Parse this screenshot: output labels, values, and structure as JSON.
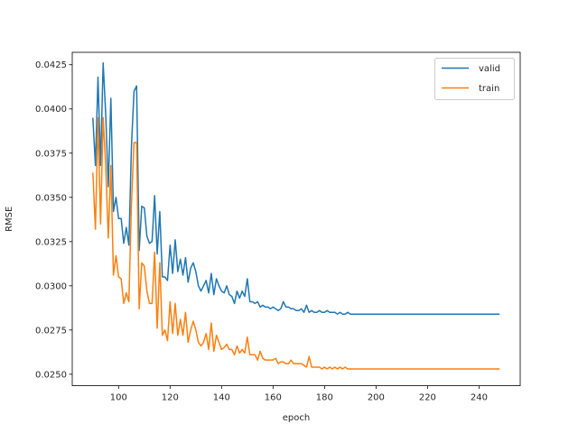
{
  "chart_data": {
    "type": "line",
    "title": "",
    "xlabel": "epoch",
    "ylabel": "RMSE",
    "xlim": [
      82,
      256
    ],
    "ylim": [
      0.02435,
      0.0432
    ],
    "xticks": [
      100,
      120,
      140,
      160,
      180,
      200,
      220,
      240
    ],
    "xtick_labels": [
      "100",
      "120",
      "140",
      "160",
      "180",
      "200",
      "220",
      "240"
    ],
    "yticks": [
      0.025,
      0.0275,
      0.03,
      0.0325,
      0.035,
      0.0375,
      0.04,
      0.0425
    ],
    "ytick_labels": [
      "0.0250",
      "0.0275",
      "0.0300",
      "0.0325",
      "0.0350",
      "0.0375",
      "0.0400",
      "0.0425"
    ],
    "grid": false,
    "legend_position": "upper right",
    "x_start": 90,
    "x_step": 1,
    "series": [
      {
        "name": "valid",
        "color": "#1f77b4",
        "values": [
          0.0395,
          0.0368,
          0.0418,
          0.0368,
          0.0426,
          0.0397,
          0.0356,
          0.0406,
          0.0342,
          0.035,
          0.0338,
          0.0338,
          0.0324,
          0.0333,
          0.0323,
          0.0379,
          0.041,
          0.0413,
          0.032,
          0.0345,
          0.0344,
          0.0328,
          0.0324,
          0.0325,
          0.0351,
          0.0318,
          0.0342,
          0.0305,
          0.0305,
          0.0303,
          0.0323,
          0.0307,
          0.0326,
          0.0308,
          0.0315,
          0.0306,
          0.0316,
          0.0302,
          0.031,
          0.0313,
          0.0308,
          0.03,
          0.0297,
          0.03,
          0.0303,
          0.0296,
          0.0307,
          0.0295,
          0.0304,
          0.03,
          0.0297,
          0.0296,
          0.03,
          0.0295,
          0.0294,
          0.029,
          0.0297,
          0.0293,
          0.0297,
          0.0294,
          0.0304,
          0.0291,
          0.0291,
          0.029,
          0.0291,
          0.0288,
          0.0289,
          0.0288,
          0.0288,
          0.0287,
          0.0288,
          0.0287,
          0.0286,
          0.0287,
          0.0291,
          0.0288,
          0.0288,
          0.0287,
          0.0287,
          0.0286,
          0.0286,
          0.0287,
          0.0285,
          0.0289,
          0.0285,
          0.0286,
          0.0285,
          0.0285,
          0.0286,
          0.0285,
          0.0285,
          0.0286,
          0.0285,
          0.0285,
          0.0285,
          0.0284,
          0.0285,
          0.0284,
          0.0284,
          0.0285,
          0.0284,
          0.0284,
          0.0284,
          0.0284,
          0.0284,
          0.0284,
          0.0284,
          0.0284,
          0.0284,
          0.0284,
          0.0284,
          0.0284,
          0.0284,
          0.0284,
          0.0284,
          0.0284,
          0.0284,
          0.0284,
          0.0284,
          0.0284,
          0.0284,
          0.0284,
          0.0284,
          0.0284,
          0.0284,
          0.0284,
          0.0284,
          0.0284,
          0.0284,
          0.0284,
          0.0284,
          0.0284,
          0.0284,
          0.0284,
          0.0284,
          0.0284,
          0.0284,
          0.0284,
          0.0284,
          0.0284,
          0.0284,
          0.0284,
          0.0284,
          0.0284,
          0.0284,
          0.0284,
          0.0284,
          0.0284,
          0.0284,
          0.0284,
          0.0284,
          0.0284,
          0.0284,
          0.0284,
          0.0284,
          0.0284,
          0.0284,
          0.0284,
          0.0284
        ]
      },
      {
        "name": "train",
        "color": "#ff7f0e",
        "values": [
          0.0364,
          0.0332,
          0.0395,
          0.0335,
          0.0395,
          0.0368,
          0.0327,
          0.0368,
          0.0306,
          0.0317,
          0.0305,
          0.0304,
          0.029,
          0.0296,
          0.0291,
          0.0347,
          0.0381,
          0.0381,
          0.0287,
          0.0313,
          0.0311,
          0.0297,
          0.029,
          0.029,
          0.0319,
          0.0276,
          0.0313,
          0.0272,
          0.0275,
          0.0269,
          0.0291,
          0.0273,
          0.029,
          0.0272,
          0.0281,
          0.0272,
          0.0285,
          0.0268,
          0.0275,
          0.028,
          0.0275,
          0.0268,
          0.0266,
          0.0268,
          0.0273,
          0.0264,
          0.0279,
          0.0263,
          0.0272,
          0.0268,
          0.0264,
          0.0265,
          0.0267,
          0.0264,
          0.0264,
          0.0261,
          0.0266,
          0.0262,
          0.0264,
          0.0262,
          0.0271,
          0.0261,
          0.0261,
          0.0261,
          0.0258,
          0.0263,
          0.0259,
          0.0258,
          0.0258,
          0.0258,
          0.0258,
          0.0259,
          0.0256,
          0.0257,
          0.0257,
          0.0256,
          0.0256,
          0.0258,
          0.0256,
          0.0256,
          0.0256,
          0.0256,
          0.0255,
          0.0254,
          0.026,
          0.0254,
          0.0254,
          0.0254,
          0.0254,
          0.0253,
          0.0254,
          0.0253,
          0.0254,
          0.0253,
          0.0254,
          0.0253,
          0.0254,
          0.0253,
          0.0254,
          0.0253,
          0.0253,
          0.0253,
          0.0253,
          0.0253,
          0.0253,
          0.0253,
          0.0253,
          0.0253,
          0.0253,
          0.0253,
          0.0253,
          0.0253,
          0.0253,
          0.0253,
          0.0253,
          0.0253,
          0.0253,
          0.0253,
          0.0253,
          0.0253,
          0.0253,
          0.0253,
          0.0253,
          0.0253,
          0.0253,
          0.0253,
          0.0253,
          0.0253,
          0.0253,
          0.0253,
          0.0253,
          0.0253,
          0.0253,
          0.0253,
          0.0253,
          0.0253,
          0.0253,
          0.0253,
          0.0253,
          0.0253,
          0.0253,
          0.0253,
          0.0253,
          0.0253,
          0.0253,
          0.0253,
          0.0253,
          0.0253,
          0.0253,
          0.0253,
          0.0253,
          0.0253,
          0.0253,
          0.0253,
          0.0253,
          0.0253,
          0.0253,
          0.0253,
          0.0253
        ]
      }
    ]
  },
  "legend": {
    "items": [
      {
        "label": "valid",
        "color": "#1f77b4"
      },
      {
        "label": "train",
        "color": "#ff7f0e"
      }
    ]
  }
}
